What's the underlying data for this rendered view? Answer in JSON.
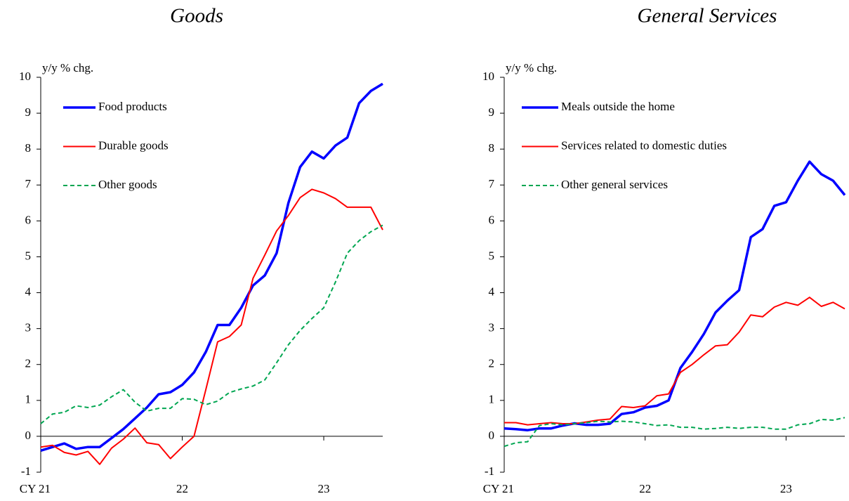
{
  "chart_data": [
    {
      "type": "line",
      "title": "Goods",
      "y_label": "y/y % chg.",
      "categories": [
        "CY 21",
        null,
        null,
        null,
        null,
        null,
        null,
        null,
        null,
        null,
        null,
        null,
        "22",
        null,
        null,
        null,
        null,
        null,
        null,
        null,
        null,
        null,
        null,
        null,
        "23",
        null,
        null,
        null,
        null,
        null
      ],
      "ylim": [
        -1,
        10
      ],
      "yticks": [
        -1,
        0,
        1,
        2,
        3,
        4,
        5,
        6,
        7,
        8,
        9,
        10
      ],
      "series": [
        {
          "name": "Food products",
          "color": "#0000ff",
          "dash": "solid",
          "width": 3.5,
          "values": [
            -0.4,
            -0.3,
            -0.2,
            -0.35,
            -0.3,
            -0.3,
            -0.05,
            0.2,
            0.5,
            0.8,
            1.17,
            1.23,
            1.43,
            1.78,
            2.35,
            3.1,
            3.1,
            3.58,
            4.2,
            4.48,
            5.1,
            6.5,
            7.5,
            7.93,
            7.74,
            8.1,
            8.32,
            9.28,
            9.62,
            9.82
          ]
        },
        {
          "name": "Durable goods",
          "color": "#ff0000",
          "dash": "solid",
          "width": 2,
          "values": [
            -0.3,
            -0.25,
            -0.45,
            -0.52,
            -0.42,
            -0.78,
            -0.33,
            -0.08,
            0.23,
            -0.18,
            -0.23,
            -0.62,
            -0.3,
            0,
            1.3,
            2.63,
            2.78,
            3.1,
            4.4,
            5.05,
            5.72,
            6.15,
            6.65,
            6.88,
            6.78,
            6.62,
            6.38,
            6.38,
            6.38,
            5.75
          ]
        },
        {
          "name": "Other goods",
          "color": "#00a651",
          "dash": "dashed",
          "width": 2,
          "values": [
            0.35,
            0.62,
            0.67,
            0.85,
            0.8,
            0.87,
            1.1,
            1.3,
            0.95,
            0.7,
            0.78,
            0.78,
            1.05,
            1.03,
            0.88,
            0.98,
            1.22,
            1.32,
            1.4,
            1.57,
            2.05,
            2.55,
            2.95,
            3.28,
            3.58,
            4.3,
            5.1,
            5.45,
            5.7,
            5.88
          ]
        }
      ]
    },
    {
      "type": "line",
      "title": "General Services",
      "y_label": "y/y % chg.",
      "categories": [
        "CY 21",
        null,
        null,
        null,
        null,
        null,
        null,
        null,
        null,
        null,
        null,
        null,
        "22",
        null,
        null,
        null,
        null,
        null,
        null,
        null,
        null,
        null,
        null,
        null,
        "23",
        null,
        null,
        null,
        null,
        null
      ],
      "ylim": [
        -1,
        10
      ],
      "yticks": [
        -1,
        0,
        1,
        2,
        3,
        4,
        5,
        6,
        7,
        8,
        9,
        10
      ],
      "series": [
        {
          "name": "Meals outside the home",
          "color": "#0000ff",
          "dash": "solid",
          "width": 3.5,
          "values": [
            0.22,
            0.2,
            0.17,
            0.22,
            0.22,
            0.3,
            0.36,
            0.32,
            0.32,
            0.35,
            0.62,
            0.67,
            0.8,
            0.85,
            1.0,
            1.9,
            2.35,
            2.85,
            3.45,
            3.78,
            4.07,
            5.55,
            5.77,
            6.42,
            6.52,
            7.12,
            7.65,
            7.3,
            7.12,
            6.72
          ]
        },
        {
          "name": "Services related to domestic duties",
          "color": "#ff0000",
          "dash": "solid",
          "width": 2,
          "values": [
            0.38,
            0.38,
            0.32,
            0.35,
            0.38,
            0.35,
            0.35,
            0.4,
            0.45,
            0.48,
            0.83,
            0.8,
            0.85,
            1.13,
            1.18,
            1.78,
            2.0,
            2.27,
            2.52,
            2.55,
            2.9,
            3.38,
            3.33,
            3.6,
            3.73,
            3.65,
            3.87,
            3.62,
            3.73,
            3.55
          ]
        },
        {
          "name": "Other general services",
          "color": "#00a651",
          "dash": "dashed",
          "width": 2,
          "values": [
            -0.28,
            -0.18,
            -0.15,
            0.3,
            0.35,
            0.32,
            0.35,
            0.38,
            0.42,
            0.4,
            0.42,
            0.4,
            0.35,
            0.3,
            0.32,
            0.25,
            0.25,
            0.2,
            0.22,
            0.25,
            0.22,
            0.25,
            0.25,
            0.2,
            0.2,
            0.32,
            0.35,
            0.47,
            0.45,
            0.52
          ]
        }
      ]
    }
  ]
}
